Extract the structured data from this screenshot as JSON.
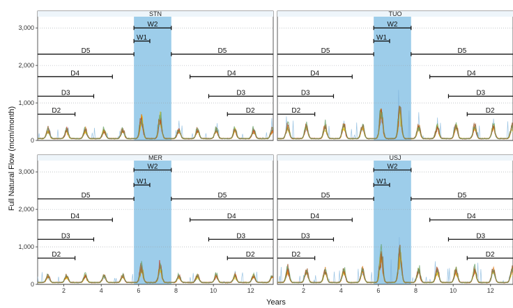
{
  "chart_data": {
    "type": "line",
    "xlabel": "Years",
    "ylabel": "Full Natural Flow (mcm/month)",
    "xlim": [
      0.6,
      13.2
    ],
    "ylim": [
      0,
      3300
    ],
    "x_ticks": [
      2,
      4,
      6,
      8,
      10,
      12
    ],
    "y_ticks": [
      0,
      1000,
      2000,
      3000
    ],
    "y_tick_labels": [
      "0",
      "1,000",
      "2,000",
      "3,000"
    ],
    "wet_period_x": [
      5.75,
      7.75
    ],
    "series_colors": [
      "#7fb4dc",
      "#d6a800",
      "#e8c100",
      "#e07b1a",
      "#c0392b",
      "#9c5a2a",
      "#6aa36d"
    ],
    "wet_band_color": "#8cc4e6",
    "panels": [
      {
        "title": "STN",
        "peak_scale": 0.7,
        "periods": [
          {
            "label": "W2",
            "segments": [
              [
                5.75,
                7.75
              ]
            ],
            "y": 3000
          },
          {
            "label": "W1",
            "segments": [
              [
                5.75,
                6.6
              ]
            ],
            "y": 2650
          },
          {
            "label": "D5",
            "segments": [
              [
                0.6,
                5.75
              ],
              [
                7.75,
                13.2
              ]
            ],
            "y": 2300
          },
          {
            "label": "D4",
            "segments": [
              [
                0.6,
                4.6
              ],
              [
                8.75,
                13.2
              ]
            ],
            "y": 1700
          },
          {
            "label": "D3",
            "segments": [
              [
                0.6,
                3.6
              ],
              [
                9.75,
                13.2
              ]
            ],
            "y": 1180
          },
          {
            "label": "D2",
            "segments": [
              [
                0.6,
                2.6
              ],
              [
                10.75,
                13.2
              ]
            ],
            "y": 700
          }
        ]
      },
      {
        "title": "TUO",
        "peak_scale": 1.0,
        "periods": [
          {
            "label": "W2",
            "segments": [
              [
                5.75,
                7.75
              ]
            ],
            "y": 3000
          },
          {
            "label": "W1",
            "segments": [
              [
                5.75,
                6.6
              ]
            ],
            "y": 2650
          },
          {
            "label": "D5",
            "segments": [
              [
                0.6,
                5.75
              ],
              [
                7.75,
                13.2
              ]
            ],
            "y": 2300
          },
          {
            "label": "D4",
            "segments": [
              [
                0.6,
                4.6
              ],
              [
                8.75,
                13.2
              ]
            ],
            "y": 1700
          },
          {
            "label": "D3",
            "segments": [
              [
                0.6,
                3.6
              ],
              [
                9.75,
                13.2
              ]
            ],
            "y": 1180
          },
          {
            "label": "D2",
            "segments": [
              [
                0.6,
                2.6
              ],
              [
                10.75,
                13.2
              ]
            ],
            "y": 700
          }
        ]
      },
      {
        "title": "MER",
        "peak_scale": 0.55,
        "periods": [
          {
            "label": "W2",
            "segments": [
              [
                5.75,
                7.75
              ]
            ],
            "y": 3050
          },
          {
            "label": "W1",
            "segments": [
              [
                5.75,
                6.6
              ]
            ],
            "y": 2650
          },
          {
            "label": "D5",
            "segments": [
              [
                0.6,
                5.75
              ],
              [
                7.75,
                13.2
              ]
            ],
            "y": 2280
          },
          {
            "label": "D4",
            "segments": [
              [
                0.6,
                4.6
              ],
              [
                8.75,
                13.2
              ]
            ],
            "y": 1720
          },
          {
            "label": "D3",
            "segments": [
              [
                0.6,
                3.6
              ],
              [
                9.75,
                13.2
              ]
            ],
            "y": 1200
          },
          {
            "label": "D2",
            "segments": [
              [
                0.6,
                2.6
              ],
              [
                10.75,
                13.2
              ]
            ],
            "y": 700
          }
        ]
      },
      {
        "title": "USJ",
        "peak_scale": 1.0,
        "periods": [
          {
            "label": "W2",
            "segments": [
              [
                5.75,
                7.75
              ]
            ],
            "y": 3050
          },
          {
            "label": "W1",
            "segments": [
              [
                5.75,
                6.6
              ]
            ],
            "y": 2650
          },
          {
            "label": "D5",
            "segments": [
              [
                0.6,
                5.75
              ],
              [
                7.75,
                13.2
              ]
            ],
            "y": 2280
          },
          {
            "label": "D4",
            "segments": [
              [
                0.6,
                4.6
              ],
              [
                8.75,
                13.2
              ]
            ],
            "y": 1720
          },
          {
            "label": "D3",
            "segments": [
              [
                0.6,
                3.6
              ],
              [
                9.75,
                13.2
              ]
            ],
            "y": 1200
          },
          {
            "label": "D2",
            "segments": [
              [
                0.6,
                2.6
              ],
              [
                10.75,
                13.2
              ]
            ],
            "y": 700
          }
        ]
      }
    ]
  }
}
